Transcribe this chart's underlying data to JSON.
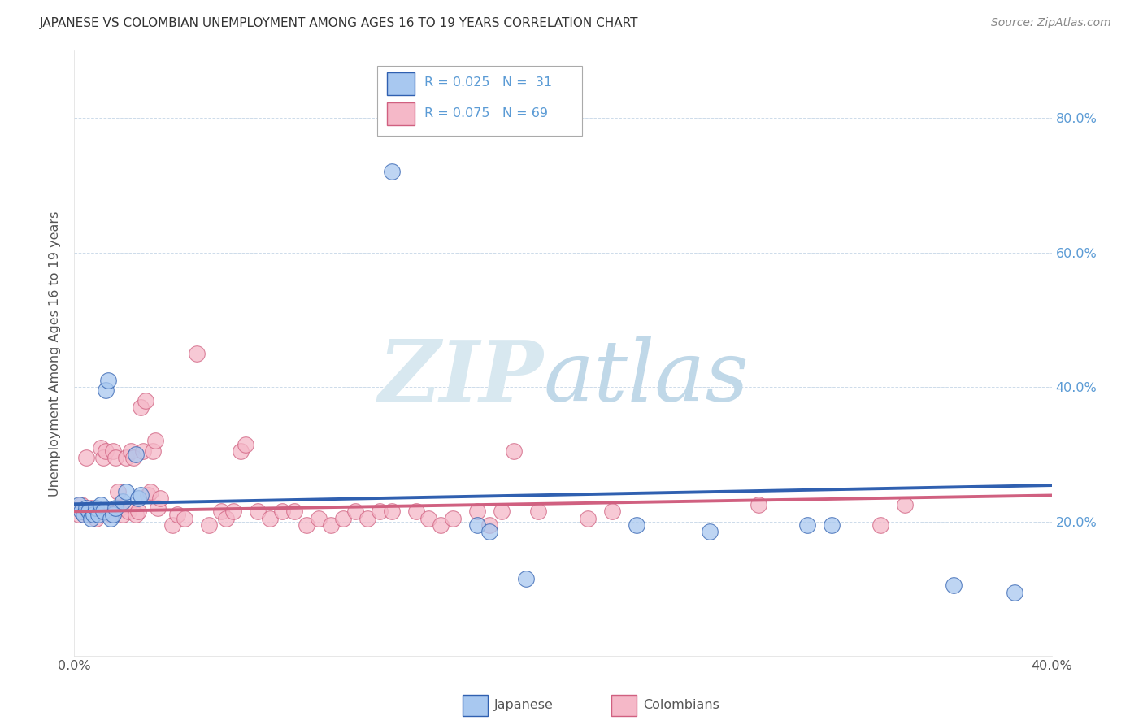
{
  "title": "JAPANESE VS COLOMBIAN UNEMPLOYMENT AMONG AGES 16 TO 19 YEARS CORRELATION CHART",
  "source": "Source: ZipAtlas.com",
  "ylabel": "Unemployment Among Ages 16 to 19 years",
  "xlim": [
    0.0,
    0.4
  ],
  "ylim": [
    0.0,
    0.9
  ],
  "japanese_color": "#a8c8f0",
  "colombian_color": "#f5b8c8",
  "japanese_line_color": "#3060b0",
  "colombian_line_color": "#d06080",
  "japanese_points": [
    [
      0.002,
      0.225
    ],
    [
      0.003,
      0.215
    ],
    [
      0.004,
      0.21
    ],
    [
      0.005,
      0.22
    ],
    [
      0.006,
      0.215
    ],
    [
      0.007,
      0.205
    ],
    [
      0.008,
      0.21
    ],
    [
      0.009,
      0.22
    ],
    [
      0.01,
      0.21
    ],
    [
      0.011,
      0.225
    ],
    [
      0.012,
      0.215
    ],
    [
      0.013,
      0.395
    ],
    [
      0.014,
      0.41
    ],
    [
      0.015,
      0.205
    ],
    [
      0.016,
      0.21
    ],
    [
      0.017,
      0.22
    ],
    [
      0.02,
      0.23
    ],
    [
      0.021,
      0.245
    ],
    [
      0.025,
      0.3
    ],
    [
      0.026,
      0.235
    ],
    [
      0.027,
      0.24
    ],
    [
      0.13,
      0.72
    ],
    [
      0.165,
      0.195
    ],
    [
      0.17,
      0.185
    ],
    [
      0.185,
      0.115
    ],
    [
      0.23,
      0.195
    ],
    [
      0.26,
      0.185
    ],
    [
      0.3,
      0.195
    ],
    [
      0.31,
      0.195
    ],
    [
      0.36,
      0.105
    ],
    [
      0.385,
      0.095
    ]
  ],
  "colombian_points": [
    [
      0.002,
      0.21
    ],
    [
      0.003,
      0.225
    ],
    [
      0.004,
      0.215
    ],
    [
      0.005,
      0.295
    ],
    [
      0.006,
      0.21
    ],
    [
      0.007,
      0.22
    ],
    [
      0.008,
      0.215
    ],
    [
      0.009,
      0.205
    ],
    [
      0.01,
      0.215
    ],
    [
      0.011,
      0.31
    ],
    [
      0.012,
      0.295
    ],
    [
      0.013,
      0.305
    ],
    [
      0.014,
      0.215
    ],
    [
      0.015,
      0.21
    ],
    [
      0.016,
      0.305
    ],
    [
      0.017,
      0.295
    ],
    [
      0.018,
      0.245
    ],
    [
      0.019,
      0.22
    ],
    [
      0.02,
      0.21
    ],
    [
      0.021,
      0.295
    ],
    [
      0.022,
      0.215
    ],
    [
      0.023,
      0.305
    ],
    [
      0.024,
      0.295
    ],
    [
      0.025,
      0.21
    ],
    [
      0.026,
      0.215
    ],
    [
      0.027,
      0.37
    ],
    [
      0.028,
      0.305
    ],
    [
      0.029,
      0.38
    ],
    [
      0.03,
      0.24
    ],
    [
      0.031,
      0.245
    ],
    [
      0.032,
      0.305
    ],
    [
      0.033,
      0.32
    ],
    [
      0.034,
      0.22
    ],
    [
      0.035,
      0.235
    ],
    [
      0.04,
      0.195
    ],
    [
      0.042,
      0.21
    ],
    [
      0.045,
      0.205
    ],
    [
      0.05,
      0.45
    ],
    [
      0.055,
      0.195
    ],
    [
      0.06,
      0.215
    ],
    [
      0.062,
      0.205
    ],
    [
      0.065,
      0.215
    ],
    [
      0.068,
      0.305
    ],
    [
      0.07,
      0.315
    ],
    [
      0.075,
      0.215
    ],
    [
      0.08,
      0.205
    ],
    [
      0.085,
      0.215
    ],
    [
      0.09,
      0.215
    ],
    [
      0.095,
      0.195
    ],
    [
      0.1,
      0.205
    ],
    [
      0.105,
      0.195
    ],
    [
      0.11,
      0.205
    ],
    [
      0.115,
      0.215
    ],
    [
      0.12,
      0.205
    ],
    [
      0.125,
      0.215
    ],
    [
      0.13,
      0.215
    ],
    [
      0.14,
      0.215
    ],
    [
      0.145,
      0.205
    ],
    [
      0.15,
      0.195
    ],
    [
      0.155,
      0.205
    ],
    [
      0.165,
      0.215
    ],
    [
      0.17,
      0.195
    ],
    [
      0.175,
      0.215
    ],
    [
      0.18,
      0.305
    ],
    [
      0.19,
      0.215
    ],
    [
      0.21,
      0.205
    ],
    [
      0.22,
      0.215
    ],
    [
      0.28,
      0.225
    ],
    [
      0.33,
      0.195
    ],
    [
      0.34,
      0.225
    ]
  ]
}
